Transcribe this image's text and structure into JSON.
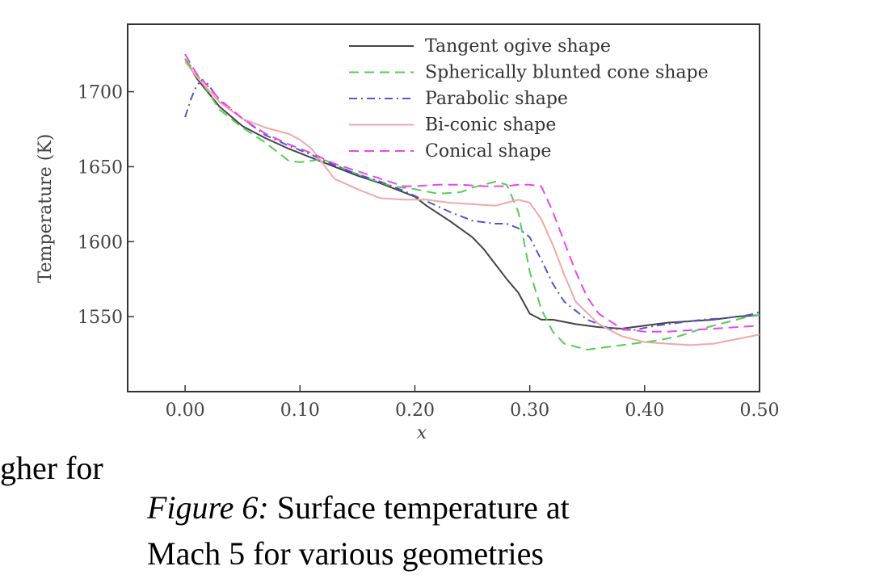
{
  "chart_data": {
    "type": "line",
    "title": "",
    "xlabel": "x",
    "ylabel": "Temperature (K)",
    "xlim": [
      -0.05,
      0.5
    ],
    "ylim": [
      1500,
      1745
    ],
    "xticks": [
      "0.00",
      "0.10",
      "0.20",
      "0.30",
      "0.40",
      "0.50"
    ],
    "yticks": [
      "1550",
      "1600",
      "1650",
      "1700"
    ],
    "grid": false,
    "legend_position": "top-right",
    "series": [
      {
        "name": "Tangent ogive shape",
        "color": "#444444",
        "dash": "solid",
        "points": [
          [
            0.0,
            1722
          ],
          [
            0.01,
            1709
          ],
          [
            0.03,
            1690
          ],
          [
            0.05,
            1677
          ],
          [
            0.07,
            1669
          ],
          [
            0.09,
            1662
          ],
          [
            0.11,
            1656
          ],
          [
            0.13,
            1650
          ],
          [
            0.15,
            1644
          ],
          [
            0.17,
            1639
          ],
          [
            0.19,
            1633
          ],
          [
            0.2,
            1630
          ],
          [
            0.21,
            1624
          ],
          [
            0.23,
            1614
          ],
          [
            0.25,
            1603
          ],
          [
            0.26,
            1595
          ],
          [
            0.27,
            1585
          ],
          [
            0.28,
            1575
          ],
          [
            0.29,
            1566
          ],
          [
            0.3,
            1552
          ],
          [
            0.31,
            1548
          ],
          [
            0.32,
            1548
          ],
          [
            0.34,
            1545
          ],
          [
            0.36,
            1543
          ],
          [
            0.38,
            1542
          ],
          [
            0.4,
            1544
          ],
          [
            0.42,
            1546
          ],
          [
            0.44,
            1547
          ],
          [
            0.46,
            1548
          ],
          [
            0.48,
            1550
          ],
          [
            0.5,
            1551
          ]
        ]
      },
      {
        "name": "Spherically blunted cone shape",
        "color": "#55cc55",
        "dash": "dashed",
        "points": [
          [
            0.0,
            1722
          ],
          [
            0.01,
            1712
          ],
          [
            0.02,
            1700
          ],
          [
            0.03,
            1688
          ],
          [
            0.05,
            1676
          ],
          [
            0.07,
            1666
          ],
          [
            0.09,
            1654
          ],
          [
            0.1,
            1653
          ],
          [
            0.12,
            1655
          ],
          [
            0.14,
            1648
          ],
          [
            0.16,
            1642
          ],
          [
            0.18,
            1637
          ],
          [
            0.2,
            1635
          ],
          [
            0.22,
            1632
          ],
          [
            0.24,
            1633
          ],
          [
            0.25,
            1636
          ],
          [
            0.26,
            1638
          ],
          [
            0.27,
            1640
          ],
          [
            0.28,
            1638
          ],
          [
            0.29,
            1620
          ],
          [
            0.3,
            1580
          ],
          [
            0.31,
            1555
          ],
          [
            0.32,
            1540
          ],
          [
            0.33,
            1532
          ],
          [
            0.35,
            1528
          ],
          [
            0.37,
            1530
          ],
          [
            0.39,
            1532
          ],
          [
            0.41,
            1534
          ],
          [
            0.43,
            1537
          ],
          [
            0.45,
            1542
          ],
          [
            0.47,
            1546
          ],
          [
            0.49,
            1550
          ],
          [
            0.5,
            1551
          ]
        ]
      },
      {
        "name": "Parabolic shape",
        "color": "#5555cc",
        "dash": "dashdot",
        "points": [
          [
            0.0,
            1683
          ],
          [
            0.005,
            1695
          ],
          [
            0.01,
            1704
          ],
          [
            0.015,
            1708
          ],
          [
            0.02,
            1705
          ],
          [
            0.03,
            1694
          ],
          [
            0.05,
            1682
          ],
          [
            0.07,
            1671
          ],
          [
            0.09,
            1664
          ],
          [
            0.11,
            1658
          ],
          [
            0.13,
            1651
          ],
          [
            0.15,
            1645
          ],
          [
            0.17,
            1640
          ],
          [
            0.19,
            1634
          ],
          [
            0.21,
            1627
          ],
          [
            0.23,
            1620
          ],
          [
            0.25,
            1614
          ],
          [
            0.27,
            1612
          ],
          [
            0.28,
            1612
          ],
          [
            0.29,
            1609
          ],
          [
            0.3,
            1603
          ],
          [
            0.31,
            1588
          ],
          [
            0.32,
            1572
          ],
          [
            0.33,
            1560
          ],
          [
            0.35,
            1548
          ],
          [
            0.37,
            1542
          ],
          [
            0.39,
            1541
          ],
          [
            0.41,
            1544
          ],
          [
            0.43,
            1546
          ],
          [
            0.45,
            1548
          ],
          [
            0.47,
            1549
          ],
          [
            0.49,
            1551
          ],
          [
            0.5,
            1553
          ]
        ]
      },
      {
        "name": "Bi-conic shape",
        "color": "#f0a8a8",
        "dash": "solid",
        "points": [
          [
            0.0,
            1720
          ],
          [
            0.01,
            1710
          ],
          [
            0.03,
            1693
          ],
          [
            0.05,
            1682
          ],
          [
            0.07,
            1676
          ],
          [
            0.09,
            1672
          ],
          [
            0.1,
            1668
          ],
          [
            0.11,
            1662
          ],
          [
            0.12,
            1652
          ],
          [
            0.13,
            1642
          ],
          [
            0.15,
            1635
          ],
          [
            0.17,
            1629
          ],
          [
            0.19,
            1628
          ],
          [
            0.21,
            1628
          ],
          [
            0.23,
            1626
          ],
          [
            0.25,
            1625
          ],
          [
            0.27,
            1624
          ],
          [
            0.28,
            1626
          ],
          [
            0.29,
            1628
          ],
          [
            0.3,
            1626
          ],
          [
            0.31,
            1615
          ],
          [
            0.32,
            1598
          ],
          [
            0.33,
            1578
          ],
          [
            0.34,
            1560
          ],
          [
            0.36,
            1545
          ],
          [
            0.38,
            1537
          ],
          [
            0.4,
            1533
          ],
          [
            0.42,
            1532
          ],
          [
            0.44,
            1531
          ],
          [
            0.46,
            1532
          ],
          [
            0.48,
            1535
          ],
          [
            0.5,
            1538
          ]
        ]
      },
      {
        "name": "Conical shape",
        "color": "#ee44ee",
        "dash": "dashed",
        "points": [
          [
            0.0,
            1725
          ],
          [
            0.01,
            1712
          ],
          [
            0.03,
            1695
          ],
          [
            0.05,
            1682
          ],
          [
            0.07,
            1672
          ],
          [
            0.09,
            1665
          ],
          [
            0.11,
            1659
          ],
          [
            0.13,
            1652
          ],
          [
            0.15,
            1647
          ],
          [
            0.17,
            1642
          ],
          [
            0.19,
            1637
          ],
          [
            0.2,
            1637
          ],
          [
            0.22,
            1638
          ],
          [
            0.24,
            1638
          ],
          [
            0.26,
            1637
          ],
          [
            0.28,
            1637
          ],
          [
            0.29,
            1638
          ],
          [
            0.3,
            1638
          ],
          [
            0.31,
            1637
          ],
          [
            0.32,
            1620
          ],
          [
            0.33,
            1600
          ],
          [
            0.34,
            1580
          ],
          [
            0.35,
            1563
          ],
          [
            0.36,
            1552
          ],
          [
            0.38,
            1542
          ],
          [
            0.4,
            1540
          ],
          [
            0.42,
            1540
          ],
          [
            0.44,
            1541
          ],
          [
            0.46,
            1542
          ],
          [
            0.48,
            1543
          ],
          [
            0.5,
            1544
          ]
        ]
      }
    ]
  },
  "text": {
    "fragment": "gher for",
    "caption_label": "Figure 6:",
    "caption_line1": " Surface temperature at",
    "caption_line2": "Mach 5 for various geometries"
  }
}
